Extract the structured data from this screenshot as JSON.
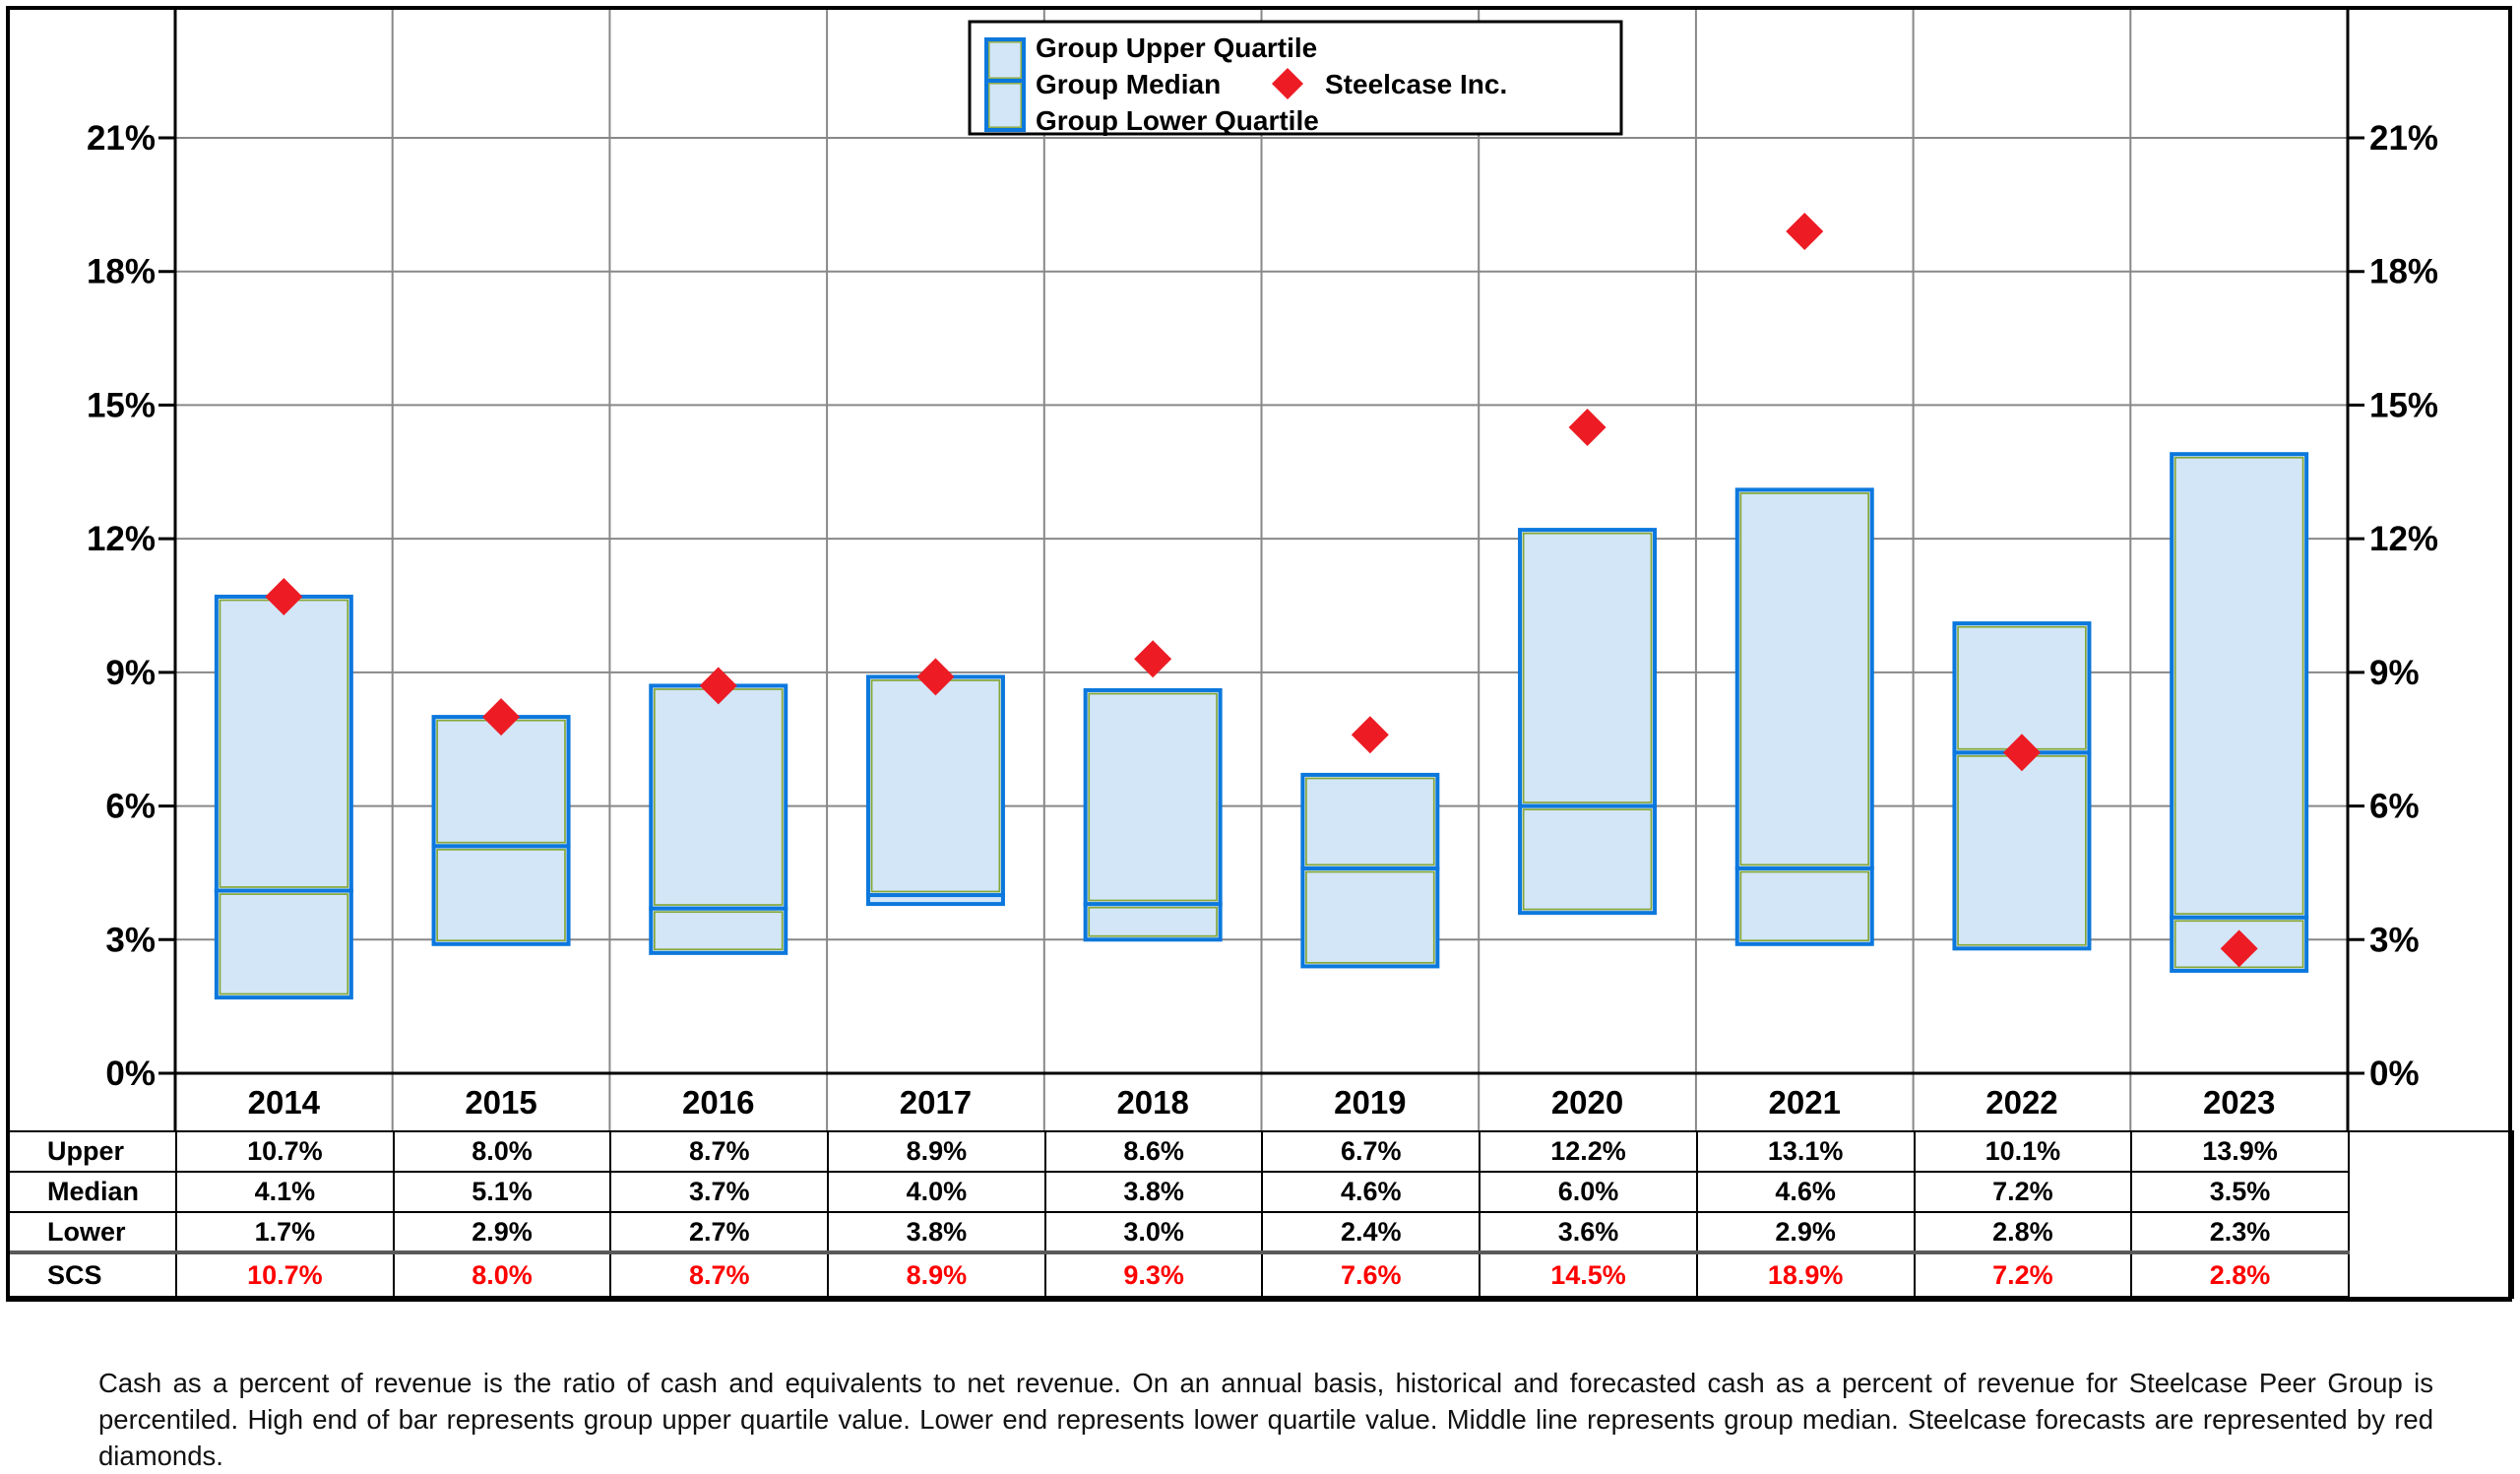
{
  "chart_data": {
    "type": "bar",
    "subtype": "floating-quartile-range-with-marker-overlay",
    "title": "",
    "categories": [
      "2014",
      "2015",
      "2016",
      "2017",
      "2018",
      "2019",
      "2020",
      "2021",
      "2022",
      "2023"
    ],
    "series": [
      {
        "name": "Group Upper Quartile",
        "role": "bar-top",
        "values": [
          10.7,
          8.0,
          8.7,
          8.9,
          8.6,
          6.7,
          12.2,
          13.1,
          10.1,
          13.9
        ]
      },
      {
        "name": "Group Median",
        "role": "bar-middle",
        "values": [
          4.1,
          5.1,
          3.7,
          4.0,
          3.8,
          4.6,
          6.0,
          4.6,
          7.2,
          3.5
        ]
      },
      {
        "name": "Group Lower Quartile",
        "role": "bar-bottom",
        "values": [
          1.7,
          2.9,
          2.7,
          3.8,
          3.0,
          2.4,
          3.6,
          2.9,
          2.8,
          2.3
        ]
      },
      {
        "name": "Steelcase Inc.",
        "role": "diamond-marker",
        "values": [
          10.7,
          8.0,
          8.7,
          8.9,
          9.3,
          7.6,
          14.5,
          18.9,
          7.2,
          2.8
        ]
      }
    ],
    "y_axis": {
      "tick_values": [
        0,
        3,
        6,
        9,
        12,
        15,
        18,
        21
      ],
      "tick_labels": [
        "0%",
        "3%",
        "6%",
        "9%",
        "12%",
        "15%",
        "18%",
        "21%"
      ],
      "ylim": [
        0,
        23.9
      ],
      "sides": "both",
      "grid": true
    },
    "legend": {
      "position": "top-center",
      "bar_labels": [
        "Group Upper Quartile",
        "Group Median",
        "Group Lower Quartile"
      ],
      "marker_label": "Steelcase Inc."
    },
    "colors": {
      "bar_fill": "#d2e6f8",
      "bar_stroke": "#0c78dd",
      "bar_inner_stroke": "#86a738",
      "diamond": "#ed1c24",
      "gridline": "#888888",
      "axis": "#000000",
      "scs_text": "#ff0000"
    }
  },
  "table": {
    "row_labels": [
      "Upper",
      "Median",
      "Lower",
      "SCS"
    ],
    "rows": [
      {
        "label": "Upper",
        "red": false,
        "values": [
          "10.7%",
          "8.0%",
          "8.7%",
          "8.9%",
          "8.6%",
          "6.7%",
          "12.2%",
          "13.1%",
          "10.1%",
          "13.9%"
        ]
      },
      {
        "label": "Median",
        "red": false,
        "values": [
          "4.1%",
          "5.1%",
          "3.7%",
          "4.0%",
          "3.8%",
          "4.6%",
          "6.0%",
          "4.6%",
          "7.2%",
          "3.5%"
        ]
      },
      {
        "label": "Lower",
        "red": false,
        "values": [
          "1.7%",
          "2.9%",
          "2.7%",
          "3.8%",
          "3.0%",
          "2.4%",
          "3.6%",
          "2.9%",
          "2.8%",
          "2.3%"
        ]
      },
      {
        "label": "SCS",
        "red": true,
        "values": [
          "10.7%",
          "8.0%",
          "8.7%",
          "8.9%",
          "9.3%",
          "7.6%",
          "14.5%",
          "18.9%",
          "7.2%",
          "2.8%"
        ]
      }
    ]
  },
  "footnote": "Cash as a percent of revenue is the ratio of cash and equivalents to net revenue.  On an annual basis, historical and forecasted cash as a percent of revenue for Steelcase Peer Group is percentiled.  High end of bar represents group upper quartile value.  Lower end represents lower quartile value.  Middle line represents group median.  Steelcase forecasts are represented by red diamonds."
}
